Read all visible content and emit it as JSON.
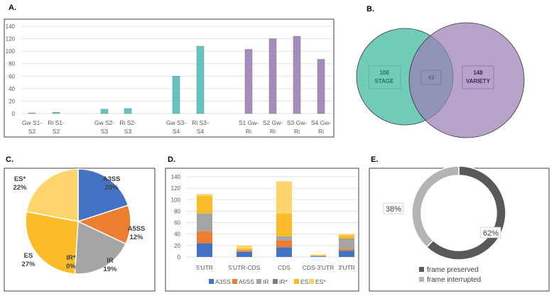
{
  "chart_data": [
    {
      "panel": "A.",
      "type": "bar",
      "categories": [
        "Gw S1-|S2",
        "Ri S1-|S2",
        "Gw S2-|S3",
        "Ri S2-|S3",
        "Gw S3-|S4",
        "Ri S3-|S4",
        "S1 Gw-|Ri",
        "S2 Gw-|Ri",
        "S3 Gw-|Ri",
        "S4 Gw-|Ri"
      ],
      "values": [
        1,
        2,
        7,
        8,
        60,
        108,
        103,
        120,
        124,
        87
      ],
      "colors": [
        "#63c5c3",
        "#63c5c3",
        "#63c5c3",
        "#63c5c3",
        "#63c5c3",
        "#63c5c3",
        "#a68bbd",
        "#a68bbd",
        "#a68bbd",
        "#a68bbd"
      ],
      "ylim": [
        0,
        140
      ],
      "yticks": [
        "0",
        "20",
        "40",
        "60",
        "80",
        "100",
        "120",
        "140"
      ],
      "grid": true
    },
    {
      "panel": "B.",
      "type": "venn",
      "sets": [
        {
          "count": "108",
          "label": "STAGE",
          "color": "#63c5b1"
        },
        {
          "count": "148",
          "label": "VARIETY",
          "color": "#9b7fb5"
        }
      ],
      "intersection": "49"
    },
    {
      "panel": "C.",
      "type": "pie",
      "slices": [
        {
          "name": "A3SS",
          "value": 20,
          "label": "20%",
          "color": "#4472c4"
        },
        {
          "name": "A5SS",
          "value": 12,
          "label": "12%",
          "color": "#ed7d31"
        },
        {
          "name": "IR",
          "value": 19,
          "label": "19%",
          "color": "#a5a5a5"
        },
        {
          "name": "IR*",
          "value": 0,
          "label": "0%",
          "color": "#7f7f7f"
        },
        {
          "name": "ES",
          "value": 27,
          "label": "27%",
          "color": "#fbbc2a"
        },
        {
          "name": "ES*",
          "value": 22,
          "label": "22%",
          "color": "#fdd56a"
        }
      ]
    },
    {
      "panel": "D.",
      "type": "bar",
      "stacked": true,
      "categories": [
        "5'UTR",
        "5'UTR-CDS",
        "CDS",
        "CDS-3'UTR",
        "3'UTR"
      ],
      "series": [
        {
          "name": "A3SS",
          "color": "#4472c4",
          "values": [
            24,
            9,
            17,
            1,
            11
          ]
        },
        {
          "name": "A5SS",
          "color": "#ed7d31",
          "values": [
            21,
            2,
            12,
            0,
            3
          ]
        },
        {
          "name": "IR",
          "color": "#a5a5a5",
          "values": [
            31,
            1,
            7,
            1,
            17
          ]
        },
        {
          "name": "IR*",
          "color": "#7f7f7f",
          "values": [
            0,
            0,
            0,
            0,
            1
          ]
        },
        {
          "name": "ES",
          "color": "#fbbc2a",
          "values": [
            30,
            3,
            40,
            1,
            6
          ]
        },
        {
          "name": "ES*",
          "color": "#fdd56a",
          "values": [
            4,
            5,
            56,
            1,
            2
          ]
        }
      ],
      "ylim": [
        0,
        140
      ],
      "yticks": [
        "0",
        "20",
        "40",
        "60",
        "80",
        "100",
        "120",
        "140"
      ],
      "legend": "bottom",
      "grid": true
    },
    {
      "panel": "E.",
      "type": "pie",
      "donut": true,
      "slices": [
        {
          "name": "frame preserved",
          "value": 62,
          "label": "62%",
          "color": "#595959"
        },
        {
          "name": "frame interrupted",
          "value": 38,
          "label": "38%",
          "color": "#b4b4b4"
        }
      ],
      "legend": "bottom"
    }
  ]
}
